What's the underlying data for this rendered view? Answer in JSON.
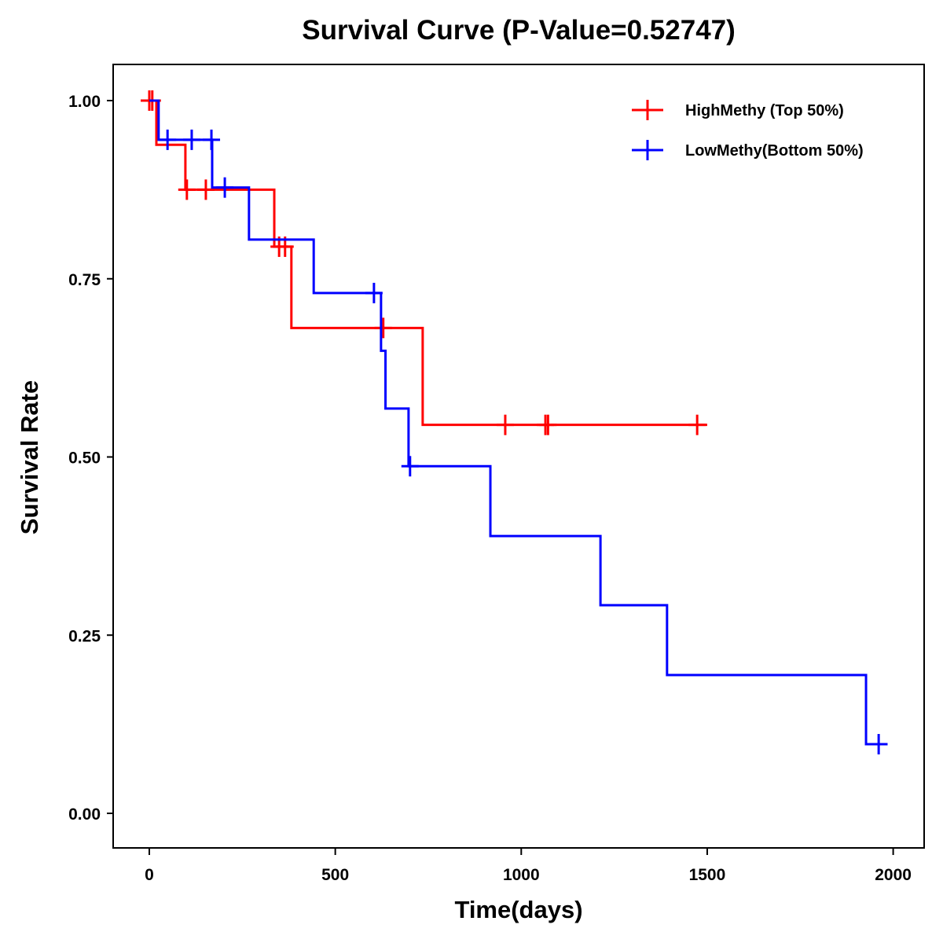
{
  "chart_data": {
    "type": "line",
    "subtype": "kaplan-meier-step",
    "title": "Survival Curve (P-Value=0.52747)",
    "xlabel": "Time(days)",
    "ylabel": "Survival Rate",
    "xlim": [
      -100,
      2090
    ],
    "ylim": [
      -0.05,
      1.05
    ],
    "x_ticks": [
      0,
      500,
      1000,
      1500,
      2000
    ],
    "x_tick_labels": [
      "0",
      "500",
      "1000",
      "1500",
      "2000"
    ],
    "y_ticks": [
      0.0,
      0.25,
      0.5,
      0.75,
      1.0
    ],
    "y_tick_labels": [
      "0.00",
      "0.25",
      "0.50",
      "0.75",
      "1.00"
    ],
    "grid": false,
    "legend_position": "top-right",
    "series": [
      {
        "name": "HighMethy (Top 50%)",
        "color": "#ff0000",
        "steps": [
          {
            "time": 0,
            "survival": 1.0
          },
          {
            "time": 19,
            "survival": 0.938
          },
          {
            "time": 97,
            "survival": 0.875
          },
          {
            "time": 336,
            "survival": 0.795
          },
          {
            "time": 382,
            "survival": 0.681
          },
          {
            "time": 735,
            "survival": 0.545
          }
        ],
        "end_time": 1500,
        "censored": [
          {
            "time": 0,
            "survival": 1.0
          },
          {
            "time": 8,
            "survival": 1.0
          },
          {
            "time": 101,
            "survival": 0.875
          },
          {
            "time": 152,
            "survival": 0.875
          },
          {
            "time": 349,
            "survival": 0.795
          },
          {
            "time": 365,
            "survival": 0.795
          },
          {
            "time": 629,
            "survival": 0.681
          },
          {
            "time": 957,
            "survival": 0.545
          },
          {
            "time": 1065,
            "survival": 0.545
          },
          {
            "time": 1072,
            "survival": 0.545
          },
          {
            "time": 1473,
            "survival": 0.545
          }
        ]
      },
      {
        "name": "LowMethy(Bottom 50%)",
        "color": "#0000ff",
        "steps": [
          {
            "time": 0,
            "survival": 1.0
          },
          {
            "time": 25,
            "survival": 0.945
          },
          {
            "time": 169,
            "survival": 0.878
          },
          {
            "time": 268,
            "survival": 0.805
          },
          {
            "time": 442,
            "survival": 0.73
          },
          {
            "time": 623,
            "survival": 0.649
          },
          {
            "time": 635,
            "survival": 0.568
          },
          {
            "time": 697,
            "survival": 0.487
          },
          {
            "time": 917,
            "survival": 0.389
          },
          {
            "time": 1213,
            "survival": 0.292
          },
          {
            "time": 1392,
            "survival": 0.194
          },
          {
            "time": 1927,
            "survival": 0.097
          }
        ],
        "end_time": 1985,
        "censored": [
          {
            "time": 49,
            "survival": 0.945
          },
          {
            "time": 114,
            "survival": 0.945
          },
          {
            "time": 167,
            "survival": 0.945
          },
          {
            "time": 203,
            "survival": 0.878
          },
          {
            "time": 604,
            "survival": 0.73
          },
          {
            "time": 701,
            "survival": 0.487
          },
          {
            "time": 1961,
            "survival": 0.097
          }
        ]
      }
    ]
  }
}
